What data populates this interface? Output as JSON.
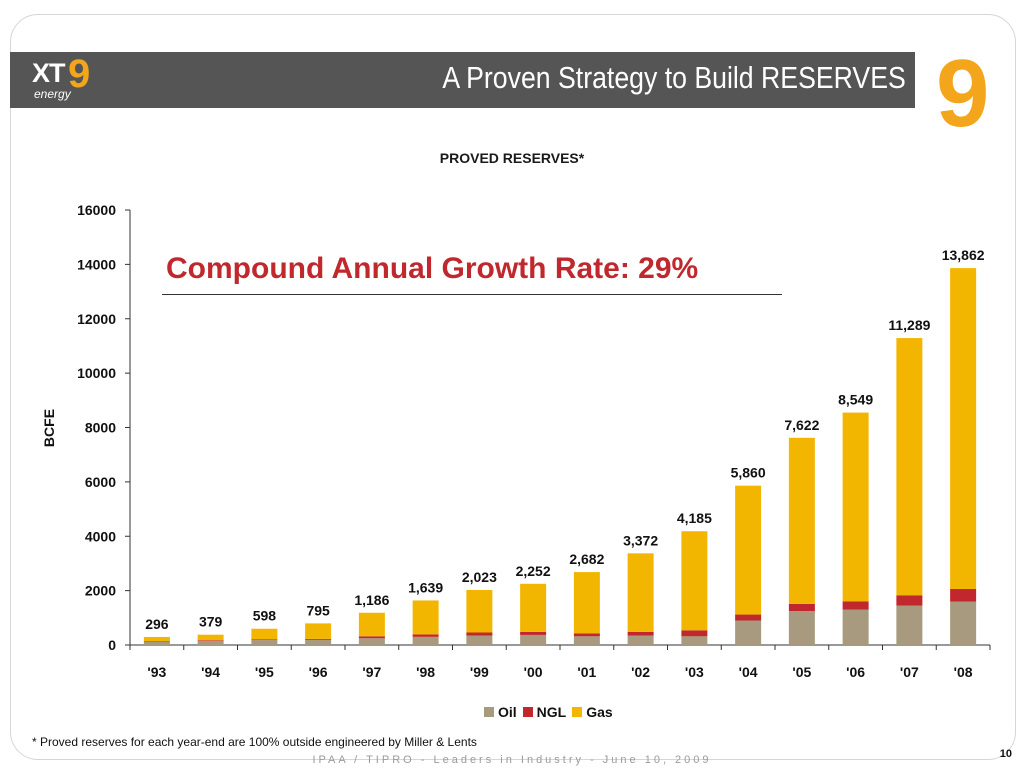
{
  "header": {
    "logo_text": "XT",
    "logo_nine": "9",
    "logo_sub": "energy",
    "title": "A Proven Strategy to Build RESERVES",
    "decor_nine": "9"
  },
  "annotation": {
    "cagr": "Compound Annual Growth Rate:  29%"
  },
  "footer": {
    "footnote": "*  Proved reserves for each year-end are 100% outside engineered by Miller & Lents",
    "event": "IPAA / TIPRO - Leaders in Industry - June 10, 2009",
    "page": "10"
  },
  "colors": {
    "oil": "#a89a7e",
    "ngl": "#c0282e",
    "gas": "#f2b600",
    "header": "#555555",
    "accent": "#f3a51b"
  },
  "chart_data": {
    "type": "bar",
    "stacked": true,
    "title": "PROVED RESERVES*",
    "ylabel": "BCFE",
    "xlabel": "",
    "ylim": [
      0,
      16000
    ],
    "yticks": [
      "16000",
      "14000",
      "12000",
      "10000",
      "8000",
      "6000",
      "4000",
      "2000",
      "0"
    ],
    "ytick_values": [
      16000,
      14000,
      12000,
      10000,
      8000,
      6000,
      4000,
      2000,
      0
    ],
    "categories": [
      "'93",
      "'94",
      "'95",
      "'96",
      "'97",
      "'98",
      "'99",
      "'00",
      "'01",
      "'02",
      "'03",
      "'04",
      "'05",
      "'06",
      "'07",
      "'08"
    ],
    "totals": [
      296,
      379,
      598,
      795,
      1186,
      1639,
      2023,
      2252,
      2682,
      3372,
      4185,
      5860,
      7622,
      8549,
      11289,
      13862
    ],
    "total_labels": [
      "296",
      "379",
      "598",
      "795",
      "1,186",
      "1,639",
      "2,023",
      "2,252",
      "2,682",
      "3,372",
      "4,185",
      "5,860",
      "7,622",
      "8,549",
      "11,289",
      "13,862"
    ],
    "series": [
      {
        "name": "Oil",
        "values": [
          110,
          150,
          180,
          190,
          250,
          300,
          350,
          370,
          320,
          350,
          320,
          900,
          1250,
          1300,
          1450,
          1600
        ]
      },
      {
        "name": "NGL",
        "values": [
          20,
          25,
          30,
          35,
          70,
          90,
          110,
          110,
          110,
          130,
          220,
          220,
          260,
          300,
          380,
          460
        ]
      },
      {
        "name": "Gas",
        "values": [
          166,
          204,
          388,
          570,
          866,
          1249,
          1563,
          1772,
          2252,
          2892,
          3645,
          4740,
          6112,
          6949,
          9459,
          11802
        ]
      }
    ],
    "legend_position": "bottom",
    "grid": false
  }
}
